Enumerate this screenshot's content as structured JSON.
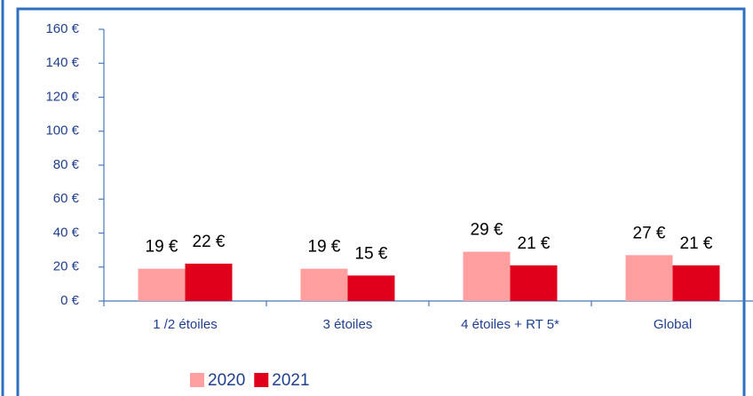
{
  "chart_data": {
    "type": "bar",
    "categories": [
      "1 /2 étoiles",
      "3 étoiles",
      "4 étoiles + RT 5*",
      "Global"
    ],
    "series": [
      {
        "name": "2020",
        "color": "#ff9f9f",
        "values": [
          19,
          19,
          29,
          27
        ],
        "value_labels": [
          "19 €",
          "19 €",
          "29 €",
          "27 €"
        ]
      },
      {
        "name": "2021",
        "color": "#e0001b",
        "values": [
          22,
          15,
          21,
          21
        ],
        "value_labels": [
          "22 €",
          "15 €",
          "21 €",
          "21 €"
        ]
      }
    ],
    "ylim": [
      0,
      160
    ],
    "yticks": [
      {
        "value": 0,
        "label": "0 €"
      },
      {
        "value": 20,
        "label": "20 €"
      },
      {
        "value": 40,
        "label": "40 €"
      },
      {
        "value": 60,
        "label": "60 €"
      },
      {
        "value": 80,
        "label": "80 €"
      },
      {
        "value": 100,
        "label": "100 €"
      },
      {
        "value": 120,
        "label": "120 €"
      },
      {
        "value": 140,
        "label": "140 €"
      },
      {
        "value": 160,
        "label": "160 €"
      }
    ],
    "legend": "bottom-left"
  }
}
